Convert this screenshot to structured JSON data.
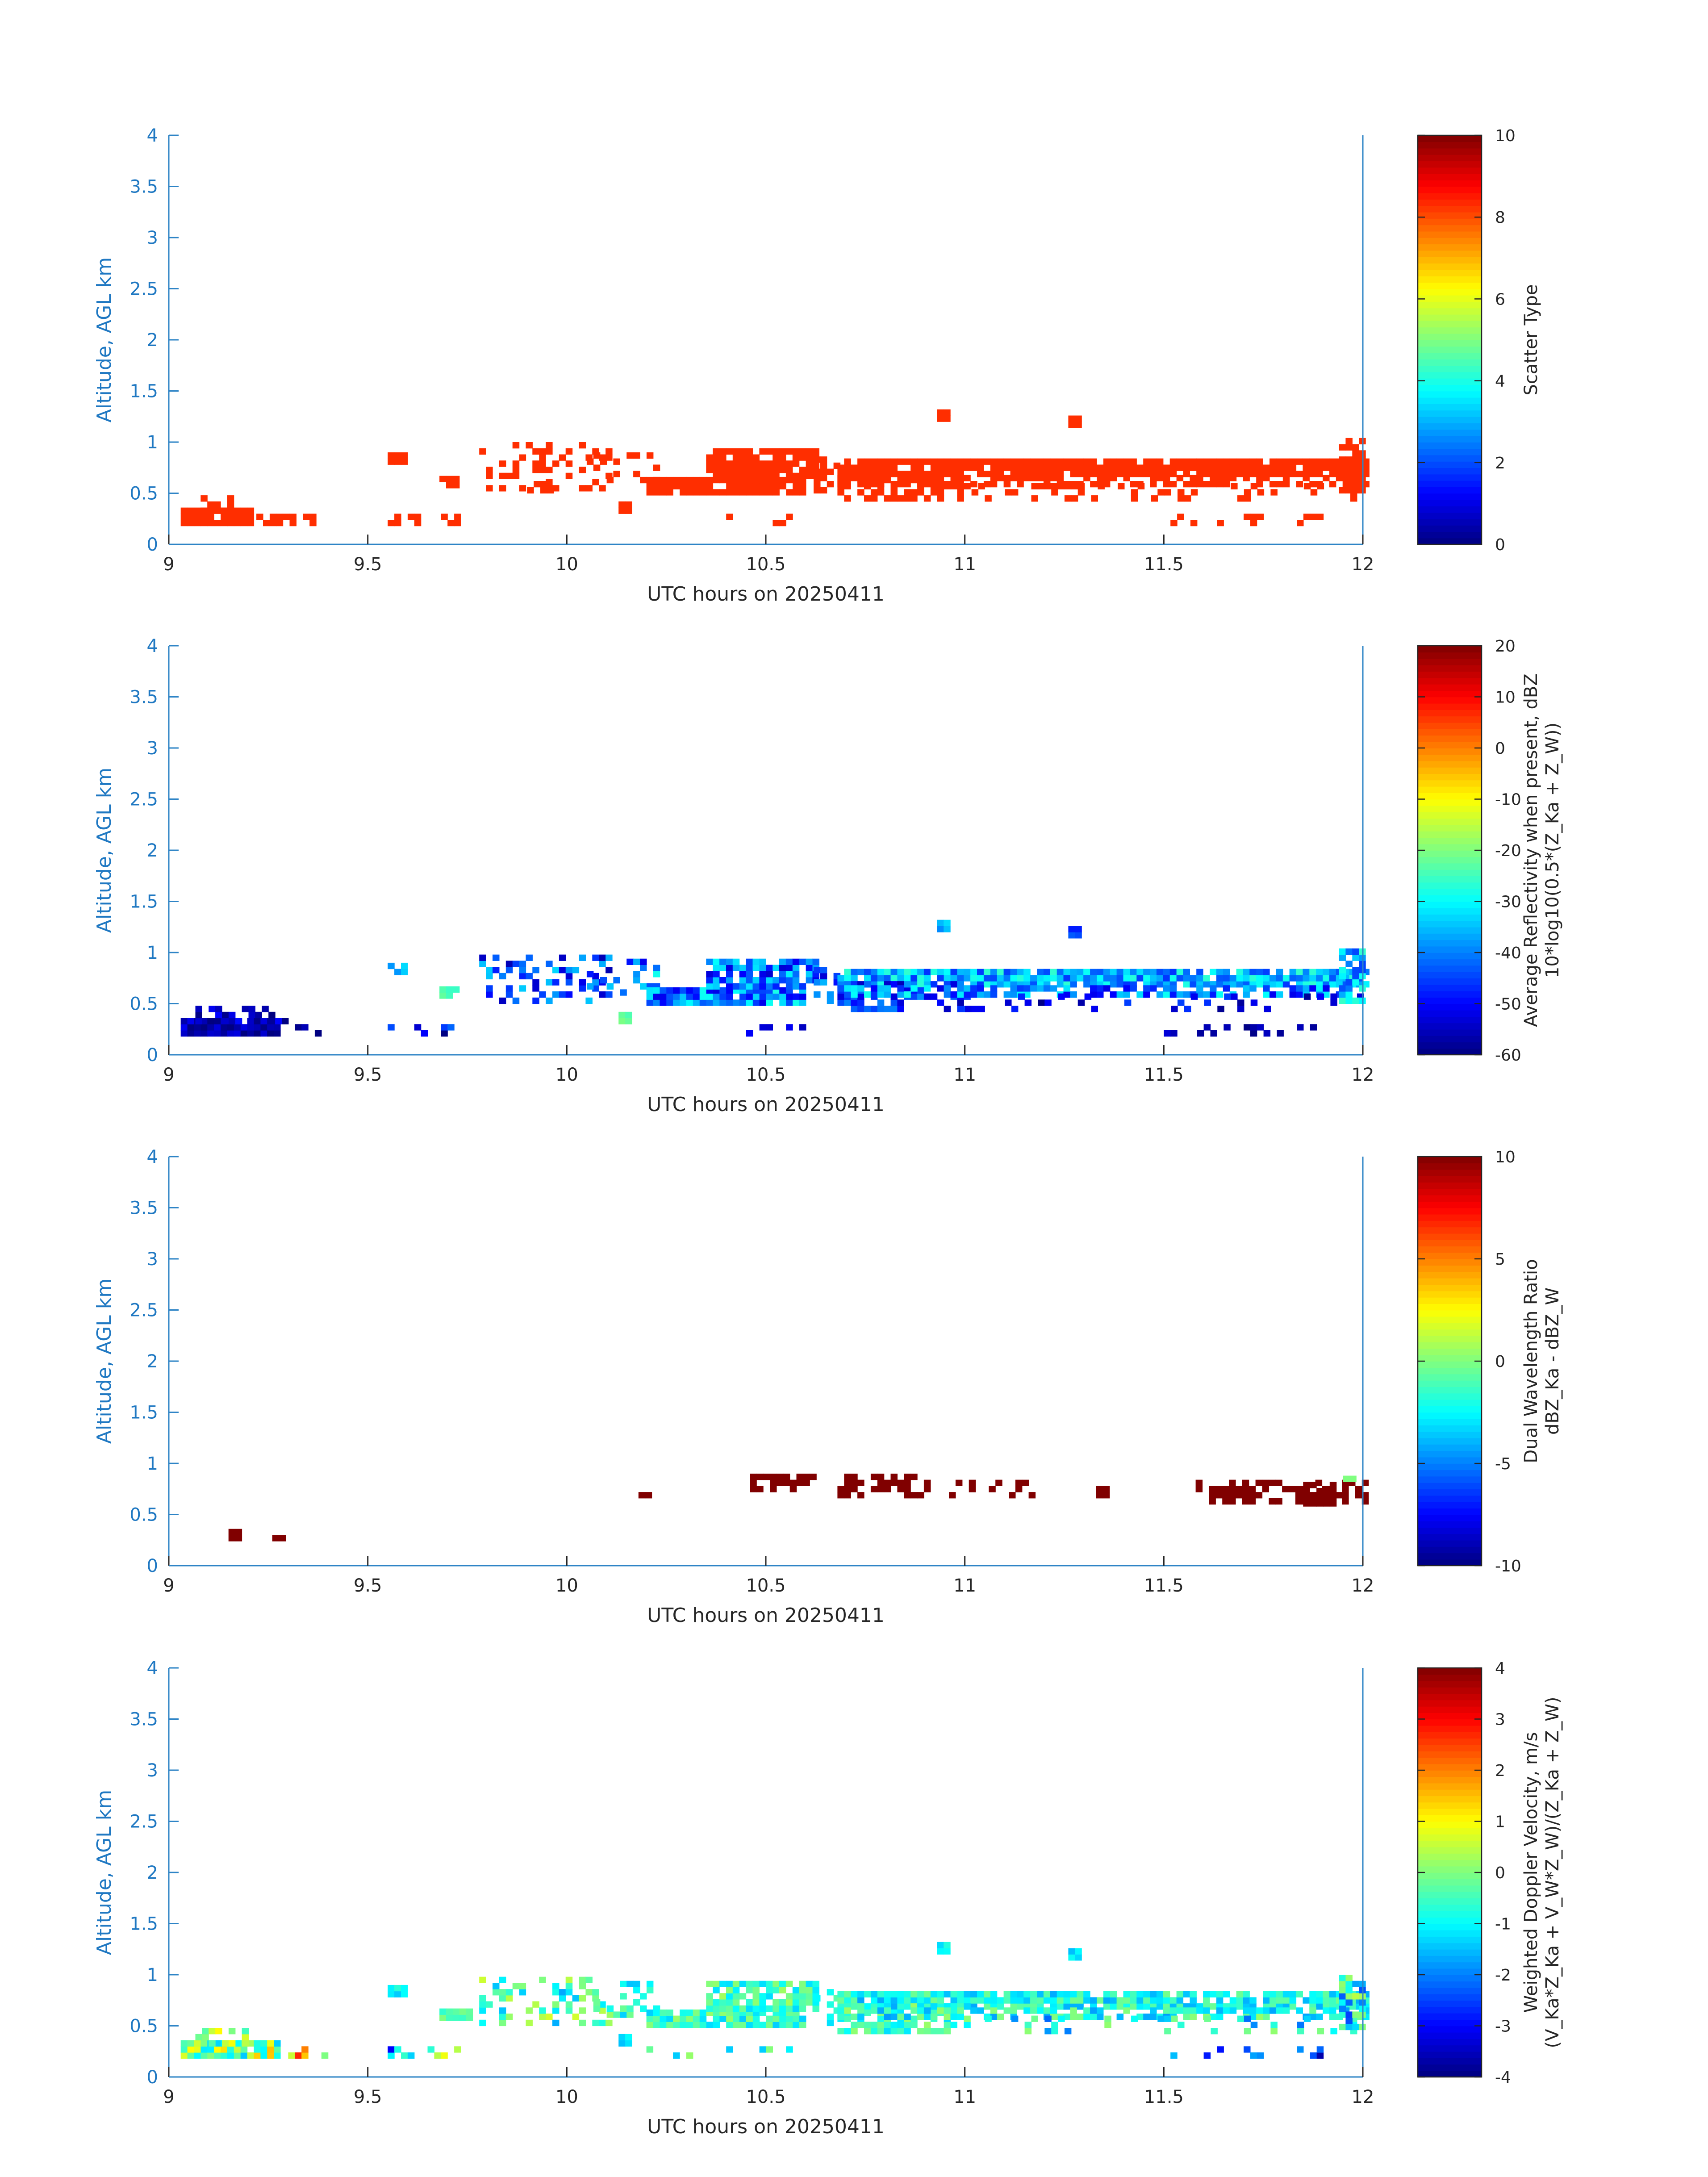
{
  "figure": {
    "panel_count": 4
  },
  "chart_data": [
    {
      "type": "heatmap",
      "title": "",
      "xlabel": "UTC hours on 20250411",
      "ylabel": "Altitude, AGL km",
      "xlim": [
        9,
        12
      ],
      "ylim": [
        0,
        4
      ],
      "xticks": [
        "9",
        "9.5",
        "10",
        "10.5",
        "11",
        "11.5",
        "12"
      ],
      "yticks": [
        "0",
        "0.5",
        "1",
        "1.5",
        "2",
        "2.5",
        "3",
        "3.5",
        "4"
      ],
      "colorbar": {
        "label_lines": [
          "Scatter Type"
        ],
        "range": [
          0,
          10
        ],
        "ticks": [
          "0",
          "2",
          "4",
          "6",
          "8",
          "10"
        ]
      },
      "colormap": "jet",
      "cell": {
        "dt": 0.0167,
        "dh": 0.06
      },
      "regions": [
        {
          "t0": 9.03,
          "t1": 9.2,
          "h0": 0.18,
          "h1": 0.32,
          "value": 8.3,
          "density": 0.9
        },
        {
          "t0": 9.08,
          "t1": 9.17,
          "h0": 0.3,
          "h1": 0.46,
          "value": 8.3,
          "density": 0.5
        },
        {
          "t0": 9.22,
          "t1": 9.36,
          "h0": 0.18,
          "h1": 0.3,
          "value": 8.3,
          "density": 0.4
        },
        {
          "t0": 9.55,
          "t1": 9.72,
          "h0": 0.18,
          "h1": 0.3,
          "value": 8.3,
          "density": 0.25
        },
        {
          "t0": 9.55,
          "t1": 9.6,
          "h0": 0.78,
          "h1": 0.9,
          "value": 8.3,
          "density": 0.7
        },
        {
          "t0": 9.68,
          "t1": 9.72,
          "h0": 0.55,
          "h1": 0.66,
          "value": 8.3,
          "density": 0.8
        },
        {
          "t0": 9.78,
          "t1": 10.1,
          "h0": 0.52,
          "h1": 0.96,
          "value": 8.3,
          "density": 0.3
        },
        {
          "t0": 9.9,
          "t1": 9.96,
          "h0": 0.5,
          "h1": 0.62,
          "value": 8.3,
          "density": 0.7
        },
        {
          "t0": 10.05,
          "t1": 10.22,
          "h0": 0.6,
          "h1": 0.9,
          "value": 8.3,
          "density": 0.25
        },
        {
          "t0": 10.13,
          "t1": 10.15,
          "h0": 0.3,
          "h1": 0.4,
          "value": 8.3,
          "density": 0.9
        },
        {
          "t0": 10.2,
          "t1": 10.6,
          "h0": 0.48,
          "h1": 0.66,
          "value": 8.3,
          "density": 0.92
        },
        {
          "t0": 10.35,
          "t1": 10.62,
          "h0": 0.64,
          "h1": 0.9,
          "value": 8.3,
          "density": 0.85
        },
        {
          "t0": 10.2,
          "t1": 10.6,
          "h0": 0.18,
          "h1": 0.26,
          "value": 8.3,
          "density": 0.12
        },
        {
          "t0": 10.62,
          "t1": 10.68,
          "h0": 0.5,
          "h1": 0.82,
          "value": 8.3,
          "density": 0.4
        },
        {
          "t0": 10.68,
          "t1": 12.0,
          "h0": 0.66,
          "h1": 0.82,
          "value": 8.3,
          "density": 0.9
        },
        {
          "t0": 10.68,
          "t1": 11.0,
          "h0": 0.42,
          "h1": 0.68,
          "value": 8.3,
          "density": 0.6
        },
        {
          "t0": 10.68,
          "t1": 12.0,
          "h0": 0.56,
          "h1": 0.68,
          "value": 8.3,
          "density": 0.55
        },
        {
          "t0": 11.0,
          "t1": 12.0,
          "h0": 0.42,
          "h1": 0.56,
          "value": 8.3,
          "density": 0.2
        },
        {
          "t0": 11.5,
          "t1": 11.9,
          "h0": 0.18,
          "h1": 0.3,
          "value": 8.3,
          "density": 0.2
        },
        {
          "t0": 10.93,
          "t1": 10.96,
          "h0": 1.2,
          "h1": 1.32,
          "value": 8.3,
          "density": 0.95
        },
        {
          "t0": 11.26,
          "t1": 11.29,
          "h0": 1.14,
          "h1": 1.26,
          "value": 8.3,
          "density": 0.95
        },
        {
          "t0": 11.94,
          "t1": 12.0,
          "h0": 0.5,
          "h1": 1.0,
          "value": 8.3,
          "density": 0.7
        }
      ]
    },
    {
      "type": "heatmap",
      "title": "",
      "xlabel": "UTC hours on 20250411",
      "ylabel": "Altitude, AGL km",
      "xlim": [
        9,
        12
      ],
      "ylim": [
        0,
        4
      ],
      "xticks": [
        "9",
        "9.5",
        "10",
        "10.5",
        "11",
        "11.5",
        "12"
      ],
      "yticks": [
        "0",
        "0.5",
        "1",
        "1.5",
        "2",
        "2.5",
        "3",
        "3.5",
        "4"
      ],
      "colorbar": {
        "label_lines": [
          "Average Reflectivity when present, dBZ",
          "10*log10(0.5*(Z",
          "Ka",
          " + Z",
          "W",
          "))"
        ],
        "label_main": "Average Reflectivity when present, dBZ",
        "label_sub": "10*log10(0.5*(Z_Ka + Z_W))",
        "range": [
          -60,
          20
        ],
        "ticks": [
          "-60",
          "-50",
          "-40",
          "-30",
          "-20",
          "-10",
          "0",
          "10",
          "20"
        ]
      },
      "colormap": "jet",
      "cell": {
        "dt": 0.0167,
        "dh": 0.06
      },
      "regions": [
        {
          "t0": 9.03,
          "t1": 9.28,
          "h0": 0.18,
          "h1": 0.32,
          "value": -57,
          "spread": 6,
          "density": 0.95
        },
        {
          "t0": 9.05,
          "t1": 9.3,
          "h0": 0.3,
          "h1": 0.46,
          "value": -55,
          "spread": 6,
          "density": 0.45
        },
        {
          "t0": 9.3,
          "t1": 9.42,
          "h0": 0.18,
          "h1": 0.28,
          "value": -58,
          "spread": 4,
          "density": 0.4
        },
        {
          "t0": 9.55,
          "t1": 9.72,
          "h0": 0.18,
          "h1": 0.3,
          "value": -50,
          "spread": 10,
          "density": 0.3
        },
        {
          "t0": 9.55,
          "t1": 9.6,
          "h0": 0.78,
          "h1": 0.9,
          "value": -35,
          "spread": 4,
          "density": 0.7
        },
        {
          "t0": 9.68,
          "t1": 9.72,
          "h0": 0.55,
          "h1": 0.66,
          "value": -25,
          "spread": 4,
          "density": 0.8
        },
        {
          "t0": 9.78,
          "t1": 10.1,
          "h0": 0.5,
          "h1": 0.96,
          "value": -45,
          "spread": 12,
          "density": 0.35
        },
        {
          "t0": 10.05,
          "t1": 10.22,
          "h0": 0.58,
          "h1": 0.9,
          "value": -40,
          "spread": 12,
          "density": 0.35
        },
        {
          "t0": 10.13,
          "t1": 10.15,
          "h0": 0.3,
          "h1": 0.4,
          "value": -22,
          "spread": 2,
          "density": 0.9
        },
        {
          "t0": 10.2,
          "t1": 10.6,
          "h0": 0.48,
          "h1": 0.66,
          "value": -40,
          "spread": 12,
          "density": 0.92
        },
        {
          "t0": 10.35,
          "t1": 10.62,
          "h0": 0.64,
          "h1": 0.9,
          "value": -42,
          "spread": 12,
          "density": 0.85
        },
        {
          "t0": 10.2,
          "t1": 10.6,
          "h0": 0.18,
          "h1": 0.26,
          "value": -55,
          "spread": 5,
          "density": 0.15
        },
        {
          "t0": 10.62,
          "t1": 10.68,
          "h0": 0.5,
          "h1": 0.82,
          "value": -45,
          "spread": 10,
          "density": 0.4
        },
        {
          "t0": 10.68,
          "t1": 12.0,
          "h0": 0.66,
          "h1": 0.82,
          "value": -36,
          "spread": 10,
          "density": 0.9
        },
        {
          "t0": 10.68,
          "t1": 11.0,
          "h0": 0.42,
          "h1": 0.68,
          "value": -48,
          "spread": 10,
          "density": 0.6
        },
        {
          "t0": 10.68,
          "t1": 12.0,
          "h0": 0.56,
          "h1": 0.68,
          "value": -40,
          "spread": 12,
          "density": 0.55
        },
        {
          "t0": 11.0,
          "t1": 12.0,
          "h0": 0.42,
          "h1": 0.56,
          "value": -52,
          "spread": 8,
          "density": 0.2
        },
        {
          "t0": 11.5,
          "t1": 11.9,
          "h0": 0.18,
          "h1": 0.3,
          "value": -56,
          "spread": 4,
          "density": 0.2
        },
        {
          "t0": 10.93,
          "t1": 10.96,
          "h0": 1.2,
          "h1": 1.32,
          "value": -36,
          "spread": 4,
          "density": 0.95
        },
        {
          "t0": 11.26,
          "t1": 11.29,
          "h0": 1.14,
          "h1": 1.26,
          "value": -40,
          "spread": 8,
          "density": 0.95
        },
        {
          "t0": 11.94,
          "t1": 12.0,
          "h0": 0.5,
          "h1": 1.0,
          "value": -35,
          "spread": 10,
          "density": 0.7
        }
      ]
    },
    {
      "type": "heatmap",
      "title": "",
      "xlabel": "UTC hours on 20250411",
      "ylabel": "Altitude, AGL km",
      "xlim": [
        9,
        12
      ],
      "ylim": [
        0,
        4
      ],
      "xticks": [
        "9",
        "9.5",
        "10",
        "10.5",
        "11",
        "11.5",
        "12"
      ],
      "yticks": [
        "0",
        "0.5",
        "1",
        "1.5",
        "2",
        "2.5",
        "3",
        "3.5",
        "4"
      ],
      "colorbar": {
        "label_main": "Dual Wavelength Ratio",
        "label_sub": "dBZ_Ka - dBZ_W",
        "range": [
          -10,
          10
        ],
        "ticks": [
          "-10",
          "-5",
          "0",
          "5",
          "10"
        ]
      },
      "colormap": "jet",
      "cell": {
        "dt": 0.0167,
        "dh": 0.06
      },
      "regions": [
        {
          "t0": 9.15,
          "t1": 9.17,
          "h0": 0.24,
          "h1": 0.34,
          "value": 10,
          "density": 1.0
        },
        {
          "t0": 9.26,
          "t1": 9.28,
          "h0": 0.24,
          "h1": 0.3,
          "value": 10,
          "density": 1.0
        },
        {
          "t0": 10.18,
          "t1": 10.2,
          "h0": 0.66,
          "h1": 0.72,
          "value": 10,
          "density": 1.0
        },
        {
          "t0": 10.46,
          "t1": 10.62,
          "h0": 0.72,
          "h1": 0.88,
          "value": 10,
          "density": 0.55
        },
        {
          "t0": 10.68,
          "t1": 10.9,
          "h0": 0.66,
          "h1": 0.9,
          "value": 10,
          "density": 0.6
        },
        {
          "t0": 10.96,
          "t1": 11.2,
          "h0": 0.66,
          "h1": 0.8,
          "value": 10,
          "density": 0.35
        },
        {
          "t0": 11.33,
          "t1": 11.35,
          "h0": 0.66,
          "h1": 0.76,
          "value": 10,
          "density": 1.0
        },
        {
          "t0": 11.58,
          "t1": 12.0,
          "h0": 0.6,
          "h1": 0.84,
          "value": 10,
          "density": 0.6
        },
        {
          "t0": 11.85,
          "t1": 11.93,
          "h0": 0.58,
          "h1": 0.8,
          "value": 10,
          "density": 0.8
        },
        {
          "t0": 11.95,
          "t1": 11.97,
          "h0": 0.82,
          "h1": 0.88,
          "value": 0,
          "density": 1.0
        }
      ]
    },
    {
      "type": "heatmap",
      "title": "",
      "xlabel": "UTC hours on 20250411",
      "ylabel": "Altitude, AGL km",
      "xlim": [
        9,
        12
      ],
      "ylim": [
        0,
        4
      ],
      "xticks": [
        "9",
        "9.5",
        "10",
        "10.5",
        "11",
        "11.5",
        "12"
      ],
      "yticks": [
        "0",
        "0.5",
        "1",
        "1.5",
        "2",
        "2.5",
        "3",
        "3.5",
        "4"
      ],
      "colorbar": {
        "label_main": "Weighted Doppler Velocity, m/s",
        "label_sub": "(V_Ka*Z_Ka + V_W*Z_W)/(Z_Ka + Z_W)",
        "range": [
          -4,
          4
        ],
        "ticks": [
          "-4",
          "-3",
          "-2",
          "-1",
          "0",
          "1",
          "2",
          "3",
          "4"
        ]
      },
      "colormap": "jet",
      "cell": {
        "dt": 0.0167,
        "dh": 0.06
      },
      "regions": [
        {
          "t0": 9.03,
          "t1": 9.28,
          "h0": 0.18,
          "h1": 0.32,
          "value": 0,
          "spread": 1.5,
          "density": 0.95
        },
        {
          "t0": 9.05,
          "t1": 9.2,
          "h0": 0.3,
          "h1": 0.46,
          "value": 0.5,
          "spread": 1.2,
          "density": 0.4
        },
        {
          "t0": 9.3,
          "t1": 9.42,
          "h0": 0.18,
          "h1": 0.28,
          "value": 1.5,
          "spread": 2.0,
          "density": 0.4
        },
        {
          "t0": 9.55,
          "t1": 9.72,
          "h0": 0.18,
          "h1": 0.3,
          "value": -1.5,
          "spread": 2.5,
          "density": 0.3
        },
        {
          "t0": 9.55,
          "t1": 9.6,
          "h0": 0.78,
          "h1": 0.9,
          "value": -1.0,
          "spread": 0.5,
          "density": 0.7
        },
        {
          "t0": 9.68,
          "t1": 9.76,
          "h0": 0.55,
          "h1": 0.66,
          "value": -0.3,
          "spread": 0.4,
          "density": 0.8
        },
        {
          "t0": 9.78,
          "t1": 10.1,
          "h0": 0.5,
          "h1": 0.96,
          "value": -0.5,
          "spread": 1.2,
          "density": 0.35
        },
        {
          "t0": 10.05,
          "t1": 10.22,
          "h0": 0.58,
          "h1": 0.9,
          "value": -0.5,
          "spread": 1.0,
          "density": 0.35
        },
        {
          "t0": 10.13,
          "t1": 10.15,
          "h0": 0.3,
          "h1": 0.4,
          "value": -1.2,
          "spread": 0.3,
          "density": 0.9
        },
        {
          "t0": 10.2,
          "t1": 10.6,
          "h0": 0.48,
          "h1": 0.66,
          "value": -0.6,
          "spread": 0.8,
          "density": 0.92
        },
        {
          "t0": 10.35,
          "t1": 10.62,
          "h0": 0.64,
          "h1": 0.9,
          "value": -0.5,
          "spread": 0.8,
          "density": 0.85
        },
        {
          "t0": 10.2,
          "t1": 10.6,
          "h0": 0.18,
          "h1": 0.26,
          "value": -0.5,
          "spread": 1.0,
          "density": 0.15
        },
        {
          "t0": 10.62,
          "t1": 10.68,
          "h0": 0.5,
          "h1": 0.82,
          "value": -0.8,
          "spread": 0.6,
          "density": 0.4
        },
        {
          "t0": 10.68,
          "t1": 12.0,
          "h0": 0.66,
          "h1": 0.82,
          "value": -0.9,
          "spread": 0.8,
          "density": 0.9
        },
        {
          "t0": 10.68,
          "t1": 11.0,
          "h0": 0.42,
          "h1": 0.68,
          "value": -0.6,
          "spread": 0.8,
          "density": 0.6
        },
        {
          "t0": 10.68,
          "t1": 12.0,
          "h0": 0.56,
          "h1": 0.68,
          "value": -0.8,
          "spread": 1.0,
          "density": 0.55
        },
        {
          "t0": 11.0,
          "t1": 12.0,
          "h0": 0.42,
          "h1": 0.56,
          "value": -1.0,
          "spread": 1.2,
          "density": 0.2
        },
        {
          "t0": 11.5,
          "t1": 11.9,
          "h0": 0.18,
          "h1": 0.3,
          "value": -2.5,
          "spread": 1.5,
          "density": 0.2
        },
        {
          "t0": 10.93,
          "t1": 10.96,
          "h0": 1.2,
          "h1": 1.32,
          "value": -1.0,
          "spread": 0.3,
          "density": 0.95
        },
        {
          "t0": 11.26,
          "t1": 11.29,
          "h0": 1.14,
          "h1": 1.26,
          "value": -1.2,
          "spread": 0.3,
          "density": 0.95
        },
        {
          "t0": 11.94,
          "t1": 12.0,
          "h0": 0.4,
          "h1": 1.0,
          "value": -1.0,
          "spread": 1.5,
          "density": 0.7
        }
      ]
    }
  ]
}
